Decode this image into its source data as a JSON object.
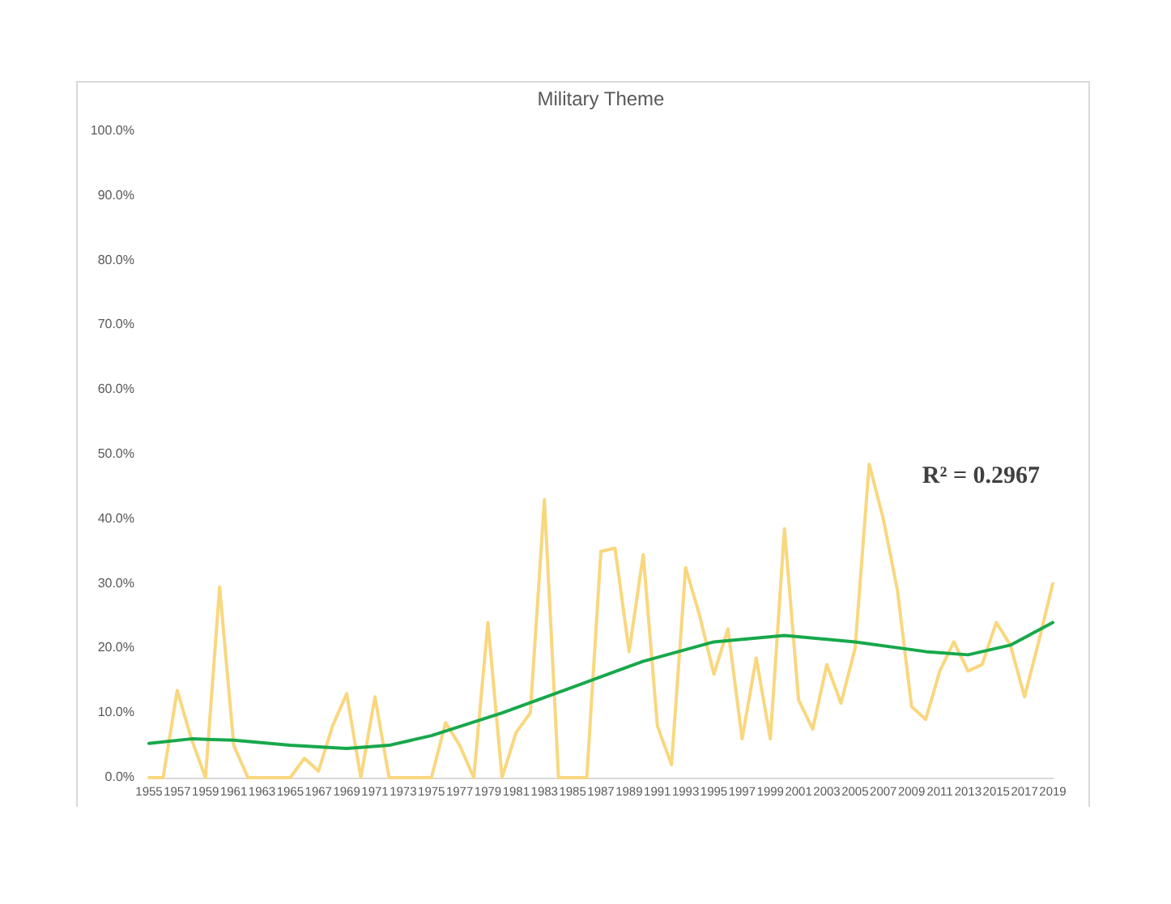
{
  "chart_data": {
    "type": "line",
    "title": "Military Theme",
    "x": [
      1955,
      1956,
      1957,
      1958,
      1959,
      1960,
      1961,
      1962,
      1963,
      1964,
      1965,
      1966,
      1967,
      1968,
      1969,
      1970,
      1971,
      1972,
      1973,
      1974,
      1975,
      1976,
      1977,
      1978,
      1979,
      1980,
      1981,
      1982,
      1983,
      1984,
      1985,
      1986,
      1987,
      1988,
      1989,
      1990,
      1991,
      1992,
      1993,
      1994,
      1995,
      1996,
      1997,
      1998,
      1999,
      2000,
      2001,
      2002,
      2003,
      2004,
      2005,
      2006,
      2007,
      2008,
      2009,
      2010,
      2011,
      2012,
      2013,
      2014,
      2015,
      2016,
      2017,
      2018,
      2019
    ],
    "series": [
      {
        "color": "#f9d77e",
        "values": [
          0,
          0,
          13.5,
          6,
          0,
          29.5,
          5,
          0,
          0,
          0,
          0,
          3,
          1,
          8,
          13,
          0,
          12.5,
          0,
          0,
          0,
          0,
          8.5,
          5,
          0,
          24,
          0,
          7,
          10,
          43,
          0,
          0,
          0,
          35,
          35.5,
          19.5,
          34.5,
          8,
          2,
          32.5,
          25,
          16,
          23,
          6,
          18.5,
          6,
          38.5,
          12,
          7.5,
          17.5,
          11.5,
          20,
          48.5,
          40,
          29,
          11,
          9,
          16.5,
          21,
          16.5,
          17.5,
          24,
          20.5,
          12.5,
          21,
          30
        ]
      },
      {
        "type": "line",
        "color": "#17a84b",
        "x": [
          1955,
          1958,
          1961,
          1965,
          1969,
          1972,
          1975,
          1980,
          1985,
          1990,
          1995,
          2000,
          2005,
          2010,
          2013,
          2016,
          2019
        ],
        "values": [
          5.3,
          6,
          5.8,
          5,
          4.5,
          5,
          6.5,
          10,
          14,
          18,
          21,
          22,
          21,
          19.5,
          19,
          20.5,
          24
        ]
      }
    ],
    "annotations": [
      "R² = 0.2967"
    ],
    "xlim": [
      1955,
      2019
    ],
    "xticks": [
      1955,
      1957,
      1959,
      1961,
      1963,
      1965,
      1967,
      1969,
      1971,
      1973,
      1975,
      1977,
      1979,
      1981,
      1983,
      1985,
      1987,
      1989,
      1991,
      1993,
      1995,
      1997,
      1999,
      2001,
      2003,
      2005,
      2007,
      2009,
      2011,
      2013,
      2015,
      2017,
      2019
    ],
    "ylim": [
      0,
      100
    ],
    "yticks": [
      {
        "value": 0,
        "label": "0.0%"
      },
      {
        "value": 10,
        "label": "10.0%"
      },
      {
        "value": 20,
        "label": "20.0%"
      },
      {
        "value": 30,
        "label": "30.0%"
      },
      {
        "value": 40,
        "label": "40.0%"
      },
      {
        "value": 50,
        "label": "50.0%"
      },
      {
        "value": 60,
        "label": "60.0%"
      },
      {
        "value": 70,
        "label": "70.0%"
      },
      {
        "value": 80,
        "label": "80.0%"
      },
      {
        "value": 90,
        "label": "90.0%"
      },
      {
        "value": 100,
        "label": "100.0%"
      }
    ],
    "grid": false,
    "marker": "none",
    "line_style": "solid"
  }
}
